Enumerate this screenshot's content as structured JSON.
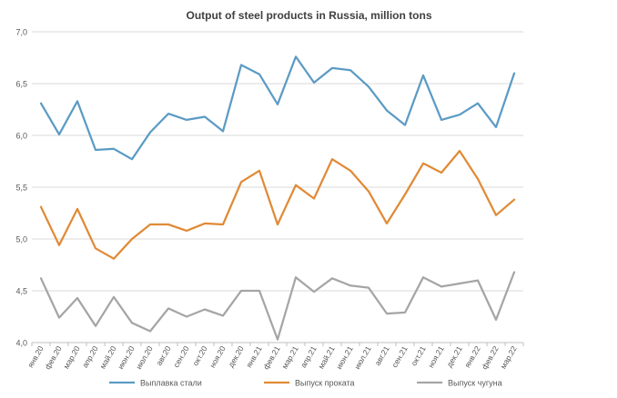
{
  "chart_data": {
    "type": "line",
    "title": "Output of steel products in Russia, million tons",
    "xlabel": "",
    "ylabel": "",
    "ylim": [
      4.0,
      7.0
    ],
    "yticks": [
      "4,0",
      "4,5",
      "5,0",
      "5,5",
      "6,0",
      "6,5",
      "7,0"
    ],
    "grid": true,
    "legend_position": "bottom",
    "categories": [
      "янв.20",
      "фев.20",
      "мар.20",
      "апр.20",
      "май.20",
      "июн.20",
      "июл.20",
      "авг.20",
      "сен.20",
      "окт.20",
      "ноя.20",
      "дек.20",
      "янв.21",
      "фев.21",
      "мар.21",
      "апр.21",
      "май.21",
      "июн.21",
      "июл.21",
      "авг.21",
      "сен.21",
      "окт.21",
      "ноя.21",
      "дек.21",
      "янв.22",
      "фев.22",
      "мар.22"
    ],
    "series": [
      {
        "name": "Выплавка стали",
        "color": "#5b9bc4",
        "values": [
          6.31,
          6.01,
          6.33,
          5.86,
          5.87,
          5.77,
          6.03,
          6.21,
          6.15,
          6.18,
          6.04,
          6.68,
          6.59,
          6.3,
          6.76,
          6.51,
          6.65,
          6.63,
          6.47,
          6.24,
          6.1,
          6.58,
          6.15,
          6.2,
          6.31,
          6.08,
          6.6
        ]
      },
      {
        "name": "Выпуск проката",
        "color": "#e08a36",
        "values": [
          5.31,
          4.94,
          5.29,
          4.91,
          4.81,
          5.0,
          5.14,
          5.14,
          5.08,
          5.15,
          5.14,
          5.55,
          5.66,
          5.14,
          5.52,
          5.39,
          5.77,
          5.66,
          5.46,
          5.15,
          5.43,
          5.73,
          5.64,
          5.85,
          5.58,
          5.23,
          5.38
        ]
      },
      {
        "name": "Выпуск чугуна",
        "color": "#a5a5a5",
        "values": [
          4.62,
          4.24,
          4.43,
          4.16,
          4.44,
          4.19,
          4.11,
          4.33,
          4.25,
          4.32,
          4.26,
          4.5,
          4.5,
          4.03,
          4.63,
          4.49,
          4.62,
          4.55,
          4.53,
          4.28,
          4.29,
          4.63,
          4.54,
          4.57,
          4.6,
          4.22,
          4.68
        ]
      }
    ]
  }
}
